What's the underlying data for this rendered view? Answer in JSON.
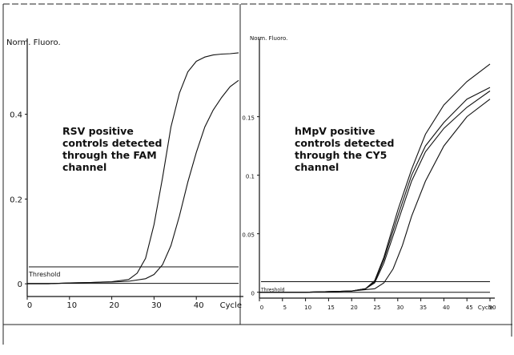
{
  "chart_data": [
    {
      "type": "line",
      "ylabel": "Norm. Fluoro.",
      "xlabel": "Cycle",
      "xlim": [
        0,
        50
      ],
      "ylim": [
        -0.03,
        0.56
      ],
      "x_ticks": [
        0,
        10,
        20,
        30,
        40
      ],
      "x_tick_labels": [
        "0",
        "10",
        "20",
        "30",
        "40"
      ],
      "y_ticks": [
        0,
        0.2,
        0.4
      ],
      "y_tick_labels": [
        "0",
        "0.2",
        "0.4"
      ],
      "threshold_label": "Threshold",
      "threshold_value": 0.04,
      "annotation": "RSV positive controls detected through the FAM channel",
      "series": [
        {
          "x": [
            0,
            5,
            10,
            15,
            20,
            24,
            26,
            28,
            30,
            32,
            34,
            36,
            38,
            40,
            42,
            44,
            46,
            48,
            50
          ],
          "y": [
            0,
            0,
            0.002,
            0.003,
            0.005,
            0.01,
            0.025,
            0.06,
            0.14,
            0.25,
            0.37,
            0.45,
            0.5,
            0.525,
            0.535,
            0.54,
            0.542,
            0.543,
            0.545
          ]
        },
        {
          "x": [
            0,
            5,
            10,
            15,
            20,
            24,
            28,
            30,
            32,
            34,
            36,
            38,
            40,
            42,
            44,
            46,
            48,
            50
          ],
          "y": [
            0,
            0,
            0.002,
            0.003,
            0.004,
            0.006,
            0.012,
            0.022,
            0.045,
            0.09,
            0.16,
            0.24,
            0.31,
            0.37,
            0.41,
            0.44,
            0.465,
            0.48
          ]
        },
        {
          "x": [
            0,
            10,
            20,
            30,
            40,
            50
          ],
          "y": [
            0.001,
            0.001,
            0.001,
            0.001,
            0.001,
            0.001
          ]
        }
      ]
    },
    {
      "type": "line",
      "ylabel": "Norm. Fluoro.",
      "xlabel": "Cycle",
      "xlim": [
        0,
        50
      ],
      "ylim": [
        -0.005,
        0.21
      ],
      "x_ticks": [
        0,
        5,
        10,
        15,
        20,
        25,
        30,
        35,
        40,
        45,
        50
      ],
      "x_tick_labels": [
        "0",
        "5",
        "10",
        "15",
        "20",
        "25",
        "30",
        "35",
        "40",
        "45",
        "50"
      ],
      "y_ticks": [
        0,
        0.05,
        0.1,
        0.15
      ],
      "y_tick_labels": [
        "0",
        "0.05",
        "0.1",
        "0.15"
      ],
      "threshold_label": "Threshold",
      "threshold_value": 0.009,
      "annotation": "hMpV positive controls detected through the CY5 channel",
      "series": [
        {
          "x": [
            0,
            10,
            20,
            23,
            25,
            27,
            30,
            33,
            36,
            40,
            45,
            50
          ],
          "y": [
            0,
            0,
            0.001,
            0.003,
            0.01,
            0.03,
            0.07,
            0.105,
            0.135,
            0.16,
            0.18,
            0.195
          ]
        },
        {
          "x": [
            0,
            10,
            20,
            23,
            25,
            27,
            30,
            33,
            36,
            40,
            45,
            50
          ],
          "y": [
            0,
            0,
            0.001,
            0.003,
            0.009,
            0.028,
            0.065,
            0.1,
            0.125,
            0.145,
            0.165,
            0.175
          ]
        },
        {
          "x": [
            0,
            10,
            20,
            23,
            25,
            27,
            30,
            33,
            36,
            40,
            45,
            50
          ],
          "y": [
            0,
            0,
            0.001,
            0.003,
            0.008,
            0.025,
            0.06,
            0.095,
            0.12,
            0.14,
            0.158,
            0.172
          ]
        },
        {
          "x": [
            0,
            10,
            20,
            25,
            27,
            29,
            31,
            33,
            36,
            40,
            45,
            50
          ],
          "y": [
            0,
            0,
            0.001,
            0.003,
            0.008,
            0.02,
            0.04,
            0.065,
            0.095,
            0.125,
            0.15,
            0.165
          ]
        },
        {
          "x": [
            0,
            10,
            20,
            30,
            40,
            50
          ],
          "y": [
            0,
            0,
            0,
            0,
            0,
            0
          ]
        }
      ]
    }
  ]
}
